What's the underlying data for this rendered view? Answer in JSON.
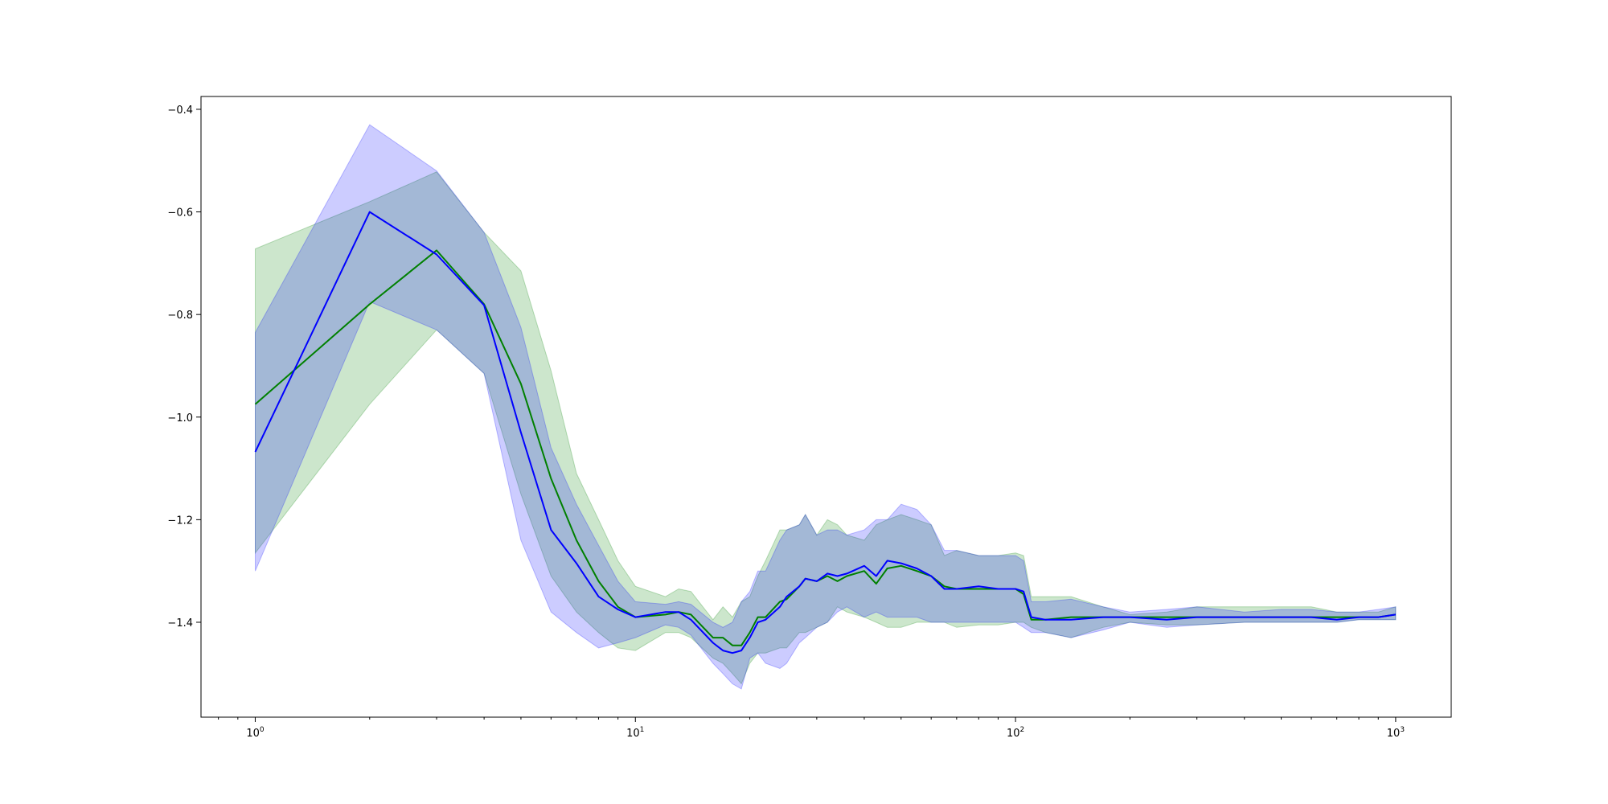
{
  "chart_data": {
    "type": "line",
    "title": "",
    "xlabel": "",
    "ylabel": "",
    "xscale": "log",
    "xlim": [
      0.72,
      1400
    ],
    "ylim": [
      -1.585,
      -0.375
    ],
    "grid": false,
    "x_ticks": [
      {
        "base": "10",
        "exp": "0",
        "value": 1
      },
      {
        "base": "10",
        "exp": "1",
        "value": 10
      },
      {
        "base": "10",
        "exp": "2",
        "value": 100
      },
      {
        "base": "10",
        "exp": "3",
        "value": 1000
      }
    ],
    "y_ticks": [
      {
        "label": "−0.4",
        "value": -0.4
      },
      {
        "label": "−0.6",
        "value": -0.6
      },
      {
        "label": "−0.8",
        "value": -0.8
      },
      {
        "label": "−1.0",
        "value": -1.0
      },
      {
        "label": "−1.2",
        "value": -1.2
      },
      {
        "label": "−1.4",
        "value": -1.4
      }
    ],
    "series": [
      {
        "color": "#008000",
        "fill_color": "#008000",
        "fill_opacity": 0.2,
        "x": [
          1,
          2,
          3,
          4,
          5,
          6,
          7,
          8,
          9,
          10,
          12,
          13,
          14,
          16,
          17,
          18,
          19,
          20,
          21,
          22,
          24,
          25,
          27,
          28,
          30,
          32,
          34,
          36,
          40,
          43,
          46,
          50,
          55,
          60,
          65,
          70,
          80,
          90,
          100,
          105,
          110,
          120,
          140,
          170,
          200,
          250,
          300,
          400,
          500,
          600,
          700,
          800,
          900,
          1000
        ],
        "y": [
          -0.975,
          -0.78,
          -0.675,
          -0.78,
          -0.935,
          -1.12,
          -1.24,
          -1.32,
          -1.37,
          -1.39,
          -1.385,
          -1.38,
          -1.385,
          -1.43,
          -1.43,
          -1.445,
          -1.445,
          -1.42,
          -1.39,
          -1.39,
          -1.36,
          -1.355,
          -1.33,
          -1.315,
          -1.32,
          -1.31,
          -1.32,
          -1.31,
          -1.3,
          -1.325,
          -1.295,
          -1.29,
          -1.3,
          -1.31,
          -1.33,
          -1.335,
          -1.335,
          -1.335,
          -1.335,
          -1.345,
          -1.395,
          -1.395,
          -1.39,
          -1.39,
          -1.39,
          -1.39,
          -1.39,
          -1.39,
          -1.39,
          -1.39,
          -1.39,
          -1.39,
          -1.39,
          -1.385
        ],
        "upper": [
          -0.672,
          -0.58,
          -0.522,
          -0.64,
          -0.715,
          -0.91,
          -1.11,
          -1.2,
          -1.28,
          -1.33,
          -1.35,
          -1.335,
          -1.34,
          -1.395,
          -1.37,
          -1.39,
          -1.36,
          -1.35,
          -1.31,
          -1.28,
          -1.22,
          -1.22,
          -1.21,
          -1.19,
          -1.23,
          -1.2,
          -1.21,
          -1.23,
          -1.24,
          -1.21,
          -1.2,
          -1.19,
          -1.2,
          -1.21,
          -1.27,
          -1.26,
          -1.27,
          -1.27,
          -1.265,
          -1.27,
          -1.35,
          -1.35,
          -1.35,
          -1.37,
          -1.385,
          -1.38,
          -1.37,
          -1.37,
          -1.37,
          -1.37,
          -1.38,
          -1.38,
          -1.38,
          -1.37
        ],
        "lower": [
          -1.265,
          -0.975,
          -0.83,
          -0.915,
          -1.15,
          -1.31,
          -1.38,
          -1.42,
          -1.45,
          -1.455,
          -1.42,
          -1.42,
          -1.43,
          -1.47,
          -1.48,
          -1.5,
          -1.52,
          -1.48,
          -1.46,
          -1.46,
          -1.45,
          -1.45,
          -1.42,
          -1.42,
          -1.41,
          -1.4,
          -1.37,
          -1.38,
          -1.39,
          -1.4,
          -1.41,
          -1.41,
          -1.4,
          -1.4,
          -1.4,
          -1.41,
          -1.405,
          -1.405,
          -1.4,
          -1.4,
          -1.41,
          -1.42,
          -1.43,
          -1.41,
          -1.4,
          -1.405,
          -1.405,
          -1.4,
          -1.4,
          -1.4,
          -1.4,
          -1.395,
          -1.395,
          -1.395
        ]
      },
      {
        "color": "#0000ff",
        "fill_color": "#0000ff",
        "fill_opacity": 0.2,
        "x": [
          1,
          2,
          3,
          4,
          5,
          6,
          7,
          8,
          9,
          10,
          12,
          13,
          14,
          16,
          17,
          18,
          19,
          20,
          21,
          22,
          24,
          25,
          27,
          28,
          30,
          32,
          34,
          36,
          40,
          43,
          46,
          50,
          55,
          60,
          65,
          70,
          80,
          90,
          100,
          105,
          110,
          120,
          140,
          170,
          200,
          250,
          300,
          400,
          500,
          600,
          700,
          800,
          900,
          1000
        ],
        "y": [
          -1.068,
          -0.6,
          -0.683,
          -0.782,
          -1.03,
          -1.22,
          -1.285,
          -1.35,
          -1.375,
          -1.39,
          -1.38,
          -1.38,
          -1.395,
          -1.44,
          -1.455,
          -1.46,
          -1.455,
          -1.43,
          -1.4,
          -1.395,
          -1.37,
          -1.35,
          -1.33,
          -1.315,
          -1.32,
          -1.305,
          -1.31,
          -1.305,
          -1.29,
          -1.31,
          -1.28,
          -1.285,
          -1.295,
          -1.31,
          -1.335,
          -1.335,
          -1.33,
          -1.335,
          -1.335,
          -1.34,
          -1.39,
          -1.395,
          -1.395,
          -1.39,
          -1.39,
          -1.395,
          -1.39,
          -1.39,
          -1.39,
          -1.39,
          -1.395,
          -1.39,
          -1.39,
          -1.385
        ],
        "upper": [
          -0.835,
          -0.43,
          -0.52,
          -0.64,
          -0.825,
          -1.06,
          -1.17,
          -1.25,
          -1.32,
          -1.36,
          -1.365,
          -1.36,
          -1.365,
          -1.4,
          -1.41,
          -1.4,
          -1.36,
          -1.34,
          -1.3,
          -1.3,
          -1.24,
          -1.22,
          -1.21,
          -1.19,
          -1.23,
          -1.22,
          -1.22,
          -1.23,
          -1.22,
          -1.2,
          -1.2,
          -1.17,
          -1.18,
          -1.21,
          -1.26,
          -1.26,
          -1.27,
          -1.27,
          -1.27,
          -1.28,
          -1.36,
          -1.36,
          -1.355,
          -1.37,
          -1.38,
          -1.375,
          -1.37,
          -1.38,
          -1.375,
          -1.375,
          -1.38,
          -1.38,
          -1.375,
          -1.37
        ],
        "lower": [
          -1.3,
          -0.775,
          -0.83,
          -0.915,
          -1.24,
          -1.38,
          -1.42,
          -1.45,
          -1.44,
          -1.43,
          -1.405,
          -1.41,
          -1.425,
          -1.48,
          -1.5,
          -1.52,
          -1.53,
          -1.47,
          -1.46,
          -1.48,
          -1.49,
          -1.48,
          -1.44,
          -1.43,
          -1.41,
          -1.4,
          -1.38,
          -1.37,
          -1.39,
          -1.38,
          -1.39,
          -1.39,
          -1.39,
          -1.4,
          -1.4,
          -1.4,
          -1.4,
          -1.4,
          -1.4,
          -1.41,
          -1.42,
          -1.42,
          -1.43,
          -1.415,
          -1.4,
          -1.41,
          -1.405,
          -1.4,
          -1.4,
          -1.4,
          -1.4,
          -1.395,
          -1.395,
          -1.395
        ]
      }
    ]
  }
}
